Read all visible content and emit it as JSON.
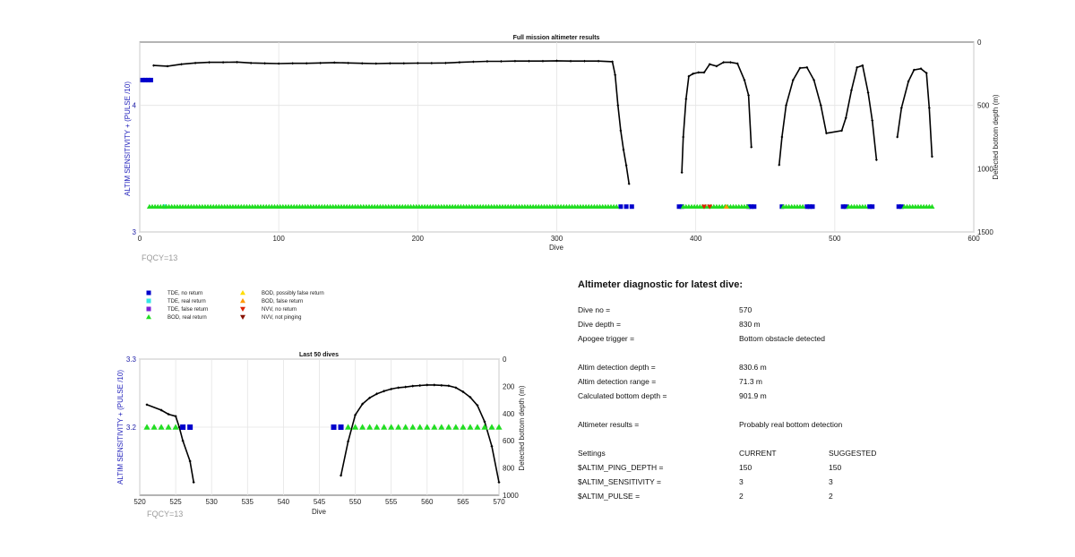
{
  "top_chart": {
    "title": "Full mission altimeter results",
    "xlabel": "Dive",
    "ylabel_left": "ALTIM SENSITIVITY + (PULSE /10)",
    "ylabel_right": "Detected bottom depth (m)",
    "fqcy": "FQCY=13",
    "x_ticks": [
      "0",
      "100",
      "200",
      "300",
      "400",
      "500",
      "600"
    ],
    "y_left_ticks": [
      "3",
      "4"
    ],
    "y_right_ticks": [
      "0",
      "500",
      "1000",
      "1500"
    ]
  },
  "bottom_chart": {
    "title": "Last 50 dives",
    "xlabel": "Dive",
    "ylabel_left": "ALTIM SENSITIVITY + (PULSE /10)",
    "ylabel_right": "Detected bottom depth (m)",
    "fqcy": "FQCY=13",
    "x_ticks": [
      "520",
      "525",
      "530",
      "535",
      "540",
      "545",
      "550",
      "555",
      "560",
      "565",
      "570"
    ],
    "y_left_ticks": [
      "3.2",
      "3.3"
    ],
    "y_right_ticks": [
      "0",
      "200",
      "400",
      "600",
      "800",
      "1000"
    ]
  },
  "legend": [
    {
      "label": "TDE, no return",
      "marker": "square",
      "color": "#0000cc"
    },
    {
      "label": "TDE, real return",
      "marker": "square",
      "color": "#33e5e5"
    },
    {
      "label": "TDE, false return",
      "marker": "square",
      "color": "#7a1fd6"
    },
    {
      "label": "BOD, real return",
      "marker": "triangle-up",
      "color": "#22dd22"
    },
    {
      "label": "BOD, possibly false return",
      "marker": "triangle-up",
      "color": "#ffdd00"
    },
    {
      "label": "BOD, false return",
      "marker": "triangle-up",
      "color": "#ff9900"
    },
    {
      "label": "NVV, no return",
      "marker": "triangle-down",
      "color": "#dd2200"
    },
    {
      "label": "NVV, not pinging",
      "marker": "triangle-down",
      "color": "#881100"
    }
  ],
  "diagnostic": {
    "title": "Altimeter diagnostic for latest dive:",
    "rows": [
      {
        "label": "Dive no =",
        "value": "570"
      },
      {
        "label": "Dive depth =",
        "value": "830 m"
      },
      {
        "label": "Apogee trigger =",
        "value": "Bottom obstacle detected"
      },
      {
        "label": "Altim detection depth =",
        "value": "830.6 m"
      },
      {
        "label": "Altim detection range =",
        "value": "71.3 m"
      },
      {
        "label": "Calculated bottom depth =",
        "value": "901.9 m"
      },
      {
        "label": "Altimeter results =",
        "value": "Probably real bottom detection"
      }
    ],
    "settings_header": {
      "label": "Settings",
      "current": "CURRENT",
      "suggested": "SUGGESTED"
    },
    "settings": [
      {
        "name": "$ALTIM_PING_DEPTH =",
        "current": "150",
        "suggested": "150"
      },
      {
        "name": "$ALTIM_SENSITIVITY =",
        "current": "3",
        "suggested": "3"
      },
      {
        "name": "$ALTIM_PULSE =",
        "current": "2",
        "suggested": "2"
      }
    ]
  },
  "chart_data": [
    {
      "type": "scatter",
      "title": "Full mission altimeter results",
      "xlabel": "Dive",
      "ylabel": "ALTIM SENSITIVITY + (PULSE /10)",
      "y2label": "Detected bottom depth (m)",
      "xlim": [
        0,
        600
      ],
      "ylim": [
        3,
        4.5
      ],
      "y2lim": [
        1500,
        0
      ],
      "grid": true,
      "series": [
        {
          "name": "Detected bottom depth (m)",
          "axis": "right",
          "color": "#000000",
          "points": [
            [
              10,
              185
            ],
            [
              20,
              190
            ],
            [
              30,
              175
            ],
            [
              40,
              165
            ],
            [
              50,
              160
            ],
            [
              60,
              160
            ],
            [
              70,
              158
            ],
            [
              80,
              165
            ],
            [
              90,
              168
            ],
            [
              100,
              170
            ],
            [
              110,
              168
            ],
            [
              120,
              168
            ],
            [
              130,
              165
            ],
            [
              140,
              162
            ],
            [
              150,
              165
            ],
            [
              160,
              168
            ],
            [
              170,
              170
            ],
            [
              180,
              168
            ],
            [
              190,
              168
            ],
            [
              200,
              166
            ],
            [
              210,
              166
            ],
            [
              220,
              165
            ],
            [
              230,
              160
            ],
            [
              240,
              156
            ],
            [
              250,
              152
            ],
            [
              260,
              152
            ],
            [
              270,
              150
            ],
            [
              280,
              150
            ],
            [
              290,
              150
            ],
            [
              300,
              148
            ],
            [
              310,
              150
            ],
            [
              320,
              150
            ],
            [
              330,
              150
            ],
            [
              340,
              155
            ],
            [
              342,
              260
            ],
            [
              344,
              500
            ],
            [
              346,
              700
            ],
            [
              348,
              850
            ],
            [
              350,
              975
            ],
            [
              352,
              1120
            ],
            [
              390,
              1030
            ],
            [
              391,
              750
            ],
            [
              393,
              450
            ],
            [
              395,
              270
            ],
            [
              398,
              250
            ],
            [
              402,
              240
            ],
            [
              406,
              240
            ],
            [
              410,
              175
            ],
            [
              415,
              190
            ],
            [
              420,
              160
            ],
            [
              425,
              160
            ],
            [
              430,
              170
            ],
            [
              435,
              300
            ],
            [
              438,
              420
            ],
            [
              440,
              830
            ],
            [
              460,
              970
            ],
            [
              462,
              750
            ],
            [
              465,
              500
            ],
            [
              470,
              300
            ],
            [
              475,
              205
            ],
            [
              480,
              200
            ],
            [
              485,
              300
            ],
            [
              490,
              500
            ],
            [
              494,
              720
            ],
            [
              505,
              700
            ],
            [
              508,
              600
            ],
            [
              512,
              380
            ],
            [
              516,
              200
            ],
            [
              520,
              185
            ],
            [
              524,
              400
            ],
            [
              527,
              620
            ],
            [
              530,
              930
            ],
            [
              545,
              750
            ],
            [
              548,
              520
            ],
            [
              553,
              310
            ],
            [
              557,
              220
            ],
            [
              562,
              210
            ],
            [
              566,
              245
            ],
            [
              568,
              520
            ],
            [
              570,
              905
            ]
          ]
        },
        {
          "name": "TDE, no return",
          "axis": "left",
          "color": "#0000cc",
          "x": [
            2,
            4,
            6,
            8,
            346,
            350,
            354,
            388,
            390,
            438,
            440,
            442,
            462,
            480,
            482,
            484,
            506,
            508,
            525,
            527,
            546,
            548
          ],
          "y": [
            4.2,
            4.2,
            4.2,
            4.2,
            3.2,
            3.2,
            3.2,
            3.2,
            3.2,
            3.2,
            3.2,
            3.2,
            3.2,
            3.2,
            3.2,
            3.2,
            3.2,
            3.2,
            3.2,
            3.2,
            3.2,
            3.2
          ]
        },
        {
          "name": "TDE, real return",
          "axis": "left",
          "color": "#33e5e5",
          "x": [
            18
          ],
          "y": [
            3.2
          ]
        },
        {
          "name": "BOD, real return",
          "axis": "left",
          "color": "#22dd22",
          "x_range": [
            [
              7,
              344
            ],
            [
              391,
              437
            ],
            [
              463,
              478
            ],
            [
              510,
              523
            ],
            [
              550,
              570
            ]
          ],
          "y": 3.2
        },
        {
          "name": "BOD, false return",
          "axis": "left",
          "color": "#ff9900",
          "x": [
            422
          ],
          "y": [
            3.2
          ]
        },
        {
          "name": "NVV, no return",
          "axis": "left",
          "color": "#dd2200",
          "x": [
            406,
            410
          ],
          "y": [
            3.2,
            3.2
          ]
        }
      ]
    },
    {
      "type": "scatter",
      "title": "Last 50 dives",
      "xlabel": "Dive",
      "ylabel": "ALTIM SENSITIVITY + (PULSE /10)",
      "y2label": "Detected bottom depth (m)",
      "xlim": [
        520,
        570
      ],
      "ylim": [
        3.1,
        3.3
      ],
      "y2lim": [
        1000,
        0
      ],
      "grid": true,
      "series": [
        {
          "name": "Detected bottom depth (m)",
          "axis": "right",
          "color": "#000000",
          "points": [
            [
              521,
              335
            ],
            [
              523,
              375
            ],
            [
              524,
              405
            ],
            [
              525,
              420
            ],
            [
              525.5,
              500
            ],
            [
              526,
              600
            ],
            [
              527,
              750
            ],
            [
              527.5,
              905
            ],
            [
              548,
              855
            ],
            [
              549,
              605
            ],
            [
              550,
              410
            ],
            [
              551,
              330
            ],
            [
              552,
              285
            ],
            [
              553,
              255
            ],
            [
              554,
              235
            ],
            [
              555,
              220
            ],
            [
              556,
              210
            ],
            [
              557,
              205
            ],
            [
              558,
              198
            ],
            [
              559,
              194
            ],
            [
              560,
              190
            ],
            [
              561,
              190
            ],
            [
              562,
              193
            ],
            [
              563,
              196
            ],
            [
              564,
              210
            ],
            [
              565,
              240
            ],
            [
              566,
              280
            ],
            [
              567,
              340
            ],
            [
              568,
              460
            ],
            [
              569,
              640
            ],
            [
              570,
              905
            ]
          ]
        },
        {
          "name": "TDE, no return",
          "axis": "left",
          "color": "#0000cc",
          "x": [
            526,
            527,
            547,
            548
          ],
          "y": [
            3.2,
            3.2,
            3.2,
            3.2
          ]
        },
        {
          "name": "BOD, real return",
          "axis": "left",
          "color": "#22dd22",
          "x": [
            521,
            522,
            523,
            524,
            525,
            549,
            550,
            551,
            552,
            553,
            554,
            555,
            556,
            557,
            558,
            559,
            560,
            561,
            562,
            563,
            564,
            565,
            566,
            567,
            568,
            569,
            570
          ],
          "y": 3.2
        }
      ]
    }
  ]
}
